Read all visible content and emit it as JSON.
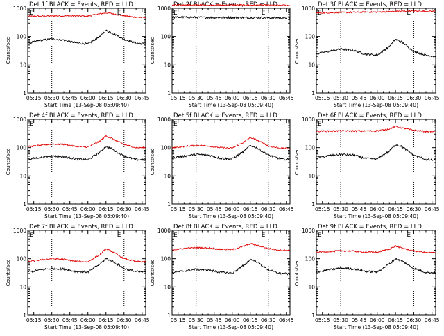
{
  "colors": {
    "events": "#000000",
    "lld": "#e00000",
    "axes": "#000000"
  },
  "chart_data": [
    {
      "type": "line",
      "title": "Det 1f BLACK = Events, RED = LLD",
      "xlabel": "Start Time (13-Sep-08 05:09:40)",
      "ylabel": "Counts/sec",
      "yscale": "log",
      "ylim": [
        1,
        1000
      ],
      "x_ticks": [
        "05:15",
        "05:30",
        "05:45",
        "06:00",
        "06:15",
        "06:30",
        "06:45"
      ],
      "y_ticks": [
        "1",
        "10",
        "100",
        "1000"
      ],
      "marker_labels": [
        "E",
        "E"
      ],
      "x": [
        "05:12",
        "05:20",
        "05:30",
        "05:40",
        "05:50",
        "06:00",
        "06:10",
        "06:15",
        "06:20",
        "06:30",
        "06:40",
        "06:47"
      ],
      "series": [
        {
          "values": [
            520,
            530,
            540,
            540,
            540,
            530,
            640,
            690,
            650,
            540,
            480,
            470
          ]
        },
        {
          "values": [
            60,
            72,
            82,
            76,
            60,
            55,
            100,
            165,
            135,
            80,
            58,
            56
          ]
        }
      ]
    },
    {
      "type": "line",
      "title": "Det 2f BLACK = Events, RED = LLD",
      "xlabel": "Start Time (13-Sep-08 05:09:40)",
      "ylabel": "Counts/sec",
      "yscale": "log",
      "ylim": [
        1,
        1000
      ],
      "x_ticks": [
        "05:15",
        "05:30",
        "05:45",
        "06:00",
        "06:15",
        "06:30",
        "06:45"
      ],
      "y_ticks": [
        "1",
        "10",
        "100",
        "1000"
      ],
      "marker_labels": [
        "E",
        "E"
      ],
      "x": [
        "05:12",
        "05:20",
        "05:30",
        "05:40",
        "05:50",
        "06:00",
        "06:10",
        "06:15",
        "06:20",
        "06:30",
        "06:40",
        "06:47"
      ],
      "series": [
        {
          "values": [
            1300,
            1300,
            1300,
            1300,
            1300,
            1300,
            1300,
            1300,
            1300,
            1290,
            1280,
            1280
          ]
        },
        {
          "values": [
            480,
            480,
            480,
            475,
            470,
            470,
            470,
            470,
            470,
            465,
            460,
            460
          ]
        }
      ]
    },
    {
      "type": "line",
      "title": "Det 3f BLACK = Events, RED = LLD",
      "xlabel": "Start Time (13-Sep-08 05:09:40)",
      "ylabel": "Counts/sec",
      "yscale": "log",
      "ylim": [
        1,
        1000
      ],
      "x_ticks": [
        "05:15",
        "05:30",
        "05:45",
        "06:00",
        "06:15",
        "06:30",
        "06:45"
      ],
      "y_ticks": [
        "1",
        "10",
        "100",
        "1000"
      ],
      "marker_labels": [
        "E",
        "E"
      ],
      "x": [
        "05:12",
        "05:20",
        "05:30",
        "05:40",
        "05:50",
        "06:00",
        "06:10",
        "06:15",
        "06:20",
        "06:30",
        "06:40",
        "06:47"
      ],
      "series": [
        {
          "values": [
            680,
            700,
            710,
            720,
            730,
            740,
            760,
            780,
            790,
            800,
            790,
            780
          ]
        },
        {
          "values": [
            25,
            30,
            36,
            33,
            24,
            22,
            45,
            80,
            65,
            30,
            22,
            20
          ]
        }
      ]
    },
    {
      "type": "line",
      "title": "Det 4f BLACK = Events, RED = LLD",
      "xlabel": "Start Time (13-Sep-08 05:09:40)",
      "ylabel": "Counts/sec",
      "yscale": "log",
      "ylim": [
        1,
        1000
      ],
      "x_ticks": [
        "05:15",
        "05:30",
        "05:45",
        "06:00",
        "06:15",
        "06:30",
        "06:45"
      ],
      "y_ticks": [
        "1",
        "10",
        "100",
        "1000"
      ],
      "marker_labels": [
        "E"
      ],
      "x": [
        "05:12",
        "05:20",
        "05:30",
        "05:40",
        "05:50",
        "06:00",
        "06:10",
        "06:15",
        "06:20",
        "06:30",
        "06:40",
        "06:47"
      ],
      "series": [
        {
          "values": [
            110,
            120,
            135,
            130,
            110,
            105,
            170,
            260,
            210,
            130,
            100,
            100
          ]
        },
        {
          "values": [
            40,
            45,
            50,
            48,
            40,
            37,
            70,
            110,
            90,
            50,
            38,
            37
          ]
        }
      ]
    },
    {
      "type": "line",
      "title": "Det 5f BLACK = Events, RED = LLD",
      "xlabel": "Start Time (13-Sep-08 05:09:40)",
      "ylabel": "Counts/sec",
      "yscale": "log",
      "ylim": [
        1,
        1000
      ],
      "x_ticks": [
        "05:15",
        "05:30",
        "05:45",
        "06:00",
        "06:15",
        "06:30",
        "06:45"
      ],
      "y_ticks": [
        "1",
        "10",
        "100",
        "1000"
      ],
      "marker_labels": [
        "E"
      ],
      "x": [
        "05:12",
        "05:20",
        "05:30",
        "05:40",
        "05:50",
        "06:00",
        "06:10",
        "06:15",
        "06:20",
        "06:30",
        "06:40",
        "06:47"
      ],
      "series": [
        {
          "values": [
            100,
            110,
            120,
            115,
            100,
            95,
            160,
            230,
            190,
            115,
            95,
            95
          ]
        },
        {
          "values": [
            45,
            50,
            58,
            55,
            42,
            40,
            75,
            120,
            100,
            55,
            40,
            38
          ]
        }
      ]
    },
    {
      "type": "line",
      "title": "Det 6f BLACK = Events, RED = LLD",
      "xlabel": "Start Time (13-Sep-08 05:09:40)",
      "ylabel": "Counts/sec",
      "yscale": "log",
      "ylim": [
        1,
        1000
      ],
      "x_ticks": [
        "05:15",
        "05:30",
        "05:45",
        "06:00",
        "06:15",
        "06:30",
        "06:45"
      ],
      "y_ticks": [
        "1",
        "10",
        "100",
        "1000"
      ],
      "marker_labels": [
        "E"
      ],
      "x": [
        "05:12",
        "05:20",
        "05:30",
        "05:40",
        "05:50",
        "06:00",
        "06:10",
        "06:15",
        "06:20",
        "06:30",
        "06:40",
        "06:47"
      ],
      "series": [
        {
          "values": [
            380,
            385,
            390,
            390,
            385,
            390,
            460,
            560,
            500,
            410,
            370,
            370
          ]
        },
        {
          "values": [
            45,
            52,
            58,
            55,
            42,
            40,
            75,
            130,
            110,
            55,
            38,
            36
          ]
        }
      ]
    },
    {
      "type": "line",
      "title": "Det 7f BLACK = Events, RED = LLD",
      "xlabel": "Start Time (13-Sep-08 05:09:40)",
      "ylabel": "Counts/sec",
      "yscale": "log",
      "ylim": [
        1,
        1000
      ],
      "x_ticks": [
        "05:15",
        "05:30",
        "05:45",
        "06:00",
        "06:15",
        "06:30",
        "06:45"
      ],
      "y_ticks": [
        "1",
        "10",
        "100",
        "1000"
      ],
      "marker_labels": [
        "E",
        "E"
      ],
      "x": [
        "05:12",
        "05:20",
        "05:30",
        "05:40",
        "05:50",
        "06:00",
        "06:10",
        "06:15",
        "06:20",
        "06:30",
        "06:40",
        "06:47"
      ],
      "series": [
        {
          "values": [
            80,
            90,
            100,
            95,
            80,
            78,
            140,
            220,
            180,
            100,
            80,
            78
          ]
        },
        {
          "values": [
            35,
            40,
            45,
            43,
            35,
            34,
            65,
            100,
            85,
            45,
            35,
            34
          ]
        }
      ]
    },
    {
      "type": "line",
      "title": "Det 8f BLACK = Events, RED = LLD",
      "xlabel": "Start Time (13-Sep-08 05:09:40)",
      "ylabel": "Counts/sec",
      "yscale": "log",
      "ylim": [
        1,
        1000
      ],
      "x_ticks": [
        "05:15",
        "05:30",
        "05:45",
        "06:00",
        "06:15",
        "06:30",
        "06:45"
      ],
      "y_ticks": [
        "1",
        "10",
        "100",
        "1000"
      ],
      "marker_labels": [
        "E",
        "E"
      ],
      "x": [
        "05:12",
        "05:20",
        "05:30",
        "05:40",
        "05:50",
        "06:00",
        "06:10",
        "06:15",
        "06:20",
        "06:30",
        "06:40",
        "06:47"
      ],
      "series": [
        {
          "values": [
            210,
            230,
            250,
            240,
            215,
            210,
            280,
            340,
            300,
            230,
            200,
            195
          ]
        },
        {
          "values": [
            33,
            37,
            42,
            40,
            33,
            31,
            60,
            95,
            80,
            40,
            30,
            29
          ]
        }
      ]
    },
    {
      "type": "line",
      "title": "Det 9f BLACK = Events, RED = LLD",
      "xlabel": "Start Time (13-Sep-08 05:09:40)",
      "ylabel": "Counts/sec",
      "yscale": "log",
      "ylim": [
        1,
        1000
      ],
      "x_ticks": [
        "05:15",
        "05:30",
        "05:45",
        "06:00",
        "06:15",
        "06:30",
        "06:45"
      ],
      "y_ticks": [
        "1",
        "10",
        "100",
        "1000"
      ],
      "marker_labels": [
        "E",
        "E"
      ],
      "x": [
        "05:12",
        "05:20",
        "05:30",
        "05:40",
        "05:50",
        "06:00",
        "06:10",
        "06:15",
        "06:20",
        "06:30",
        "06:40",
        "06:47"
      ],
      "series": [
        {
          "values": [
            170,
            180,
            190,
            185,
            170,
            170,
            220,
            280,
            240,
            190,
            165,
            165
          ]
        },
        {
          "values": [
            35,
            40,
            47,
            44,
            36,
            34,
            65,
            100,
            85,
            45,
            33,
            32
          ]
        }
      ]
    }
  ]
}
